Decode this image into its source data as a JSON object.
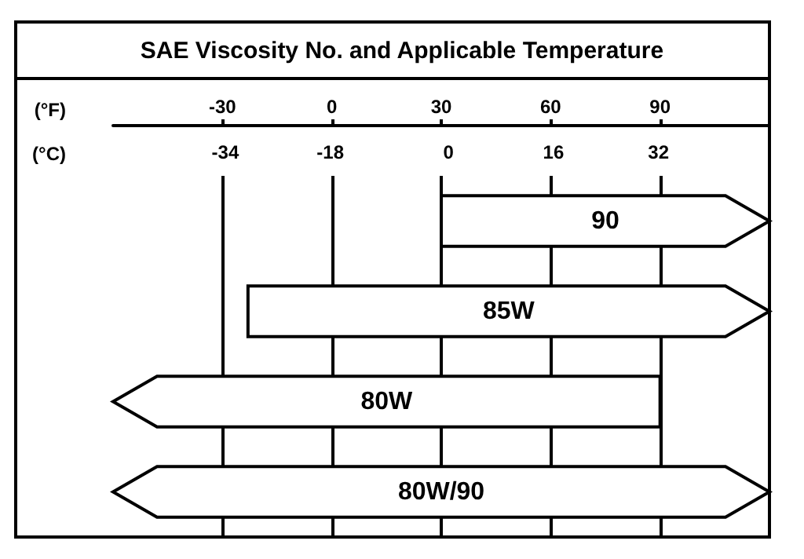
{
  "chart_data": {
    "type": "bar",
    "orientation": "horizontal",
    "title": "SAE Viscosity No. and Applicable Temperature",
    "xlabel": "(°F)",
    "x2label": "(°C)",
    "categories": [
      "90",
      "85W",
      "80W",
      "80W/90"
    ],
    "base": [
      30,
      -23,
      -60,
      -60
    ],
    "values": [
      90,
      143,
      150,
      180
    ],
    "color": "#ffffff",
    "xlim": [
      -60,
      120
    ],
    "xticks": [
      -30,
      0,
      30,
      60,
      90
    ],
    "x2lim": [
      -51.1,
      48.9
    ],
    "x2ticks": [
      -34,
      -18,
      0,
      16,
      32
    ],
    "grid": "x"
  }
}
